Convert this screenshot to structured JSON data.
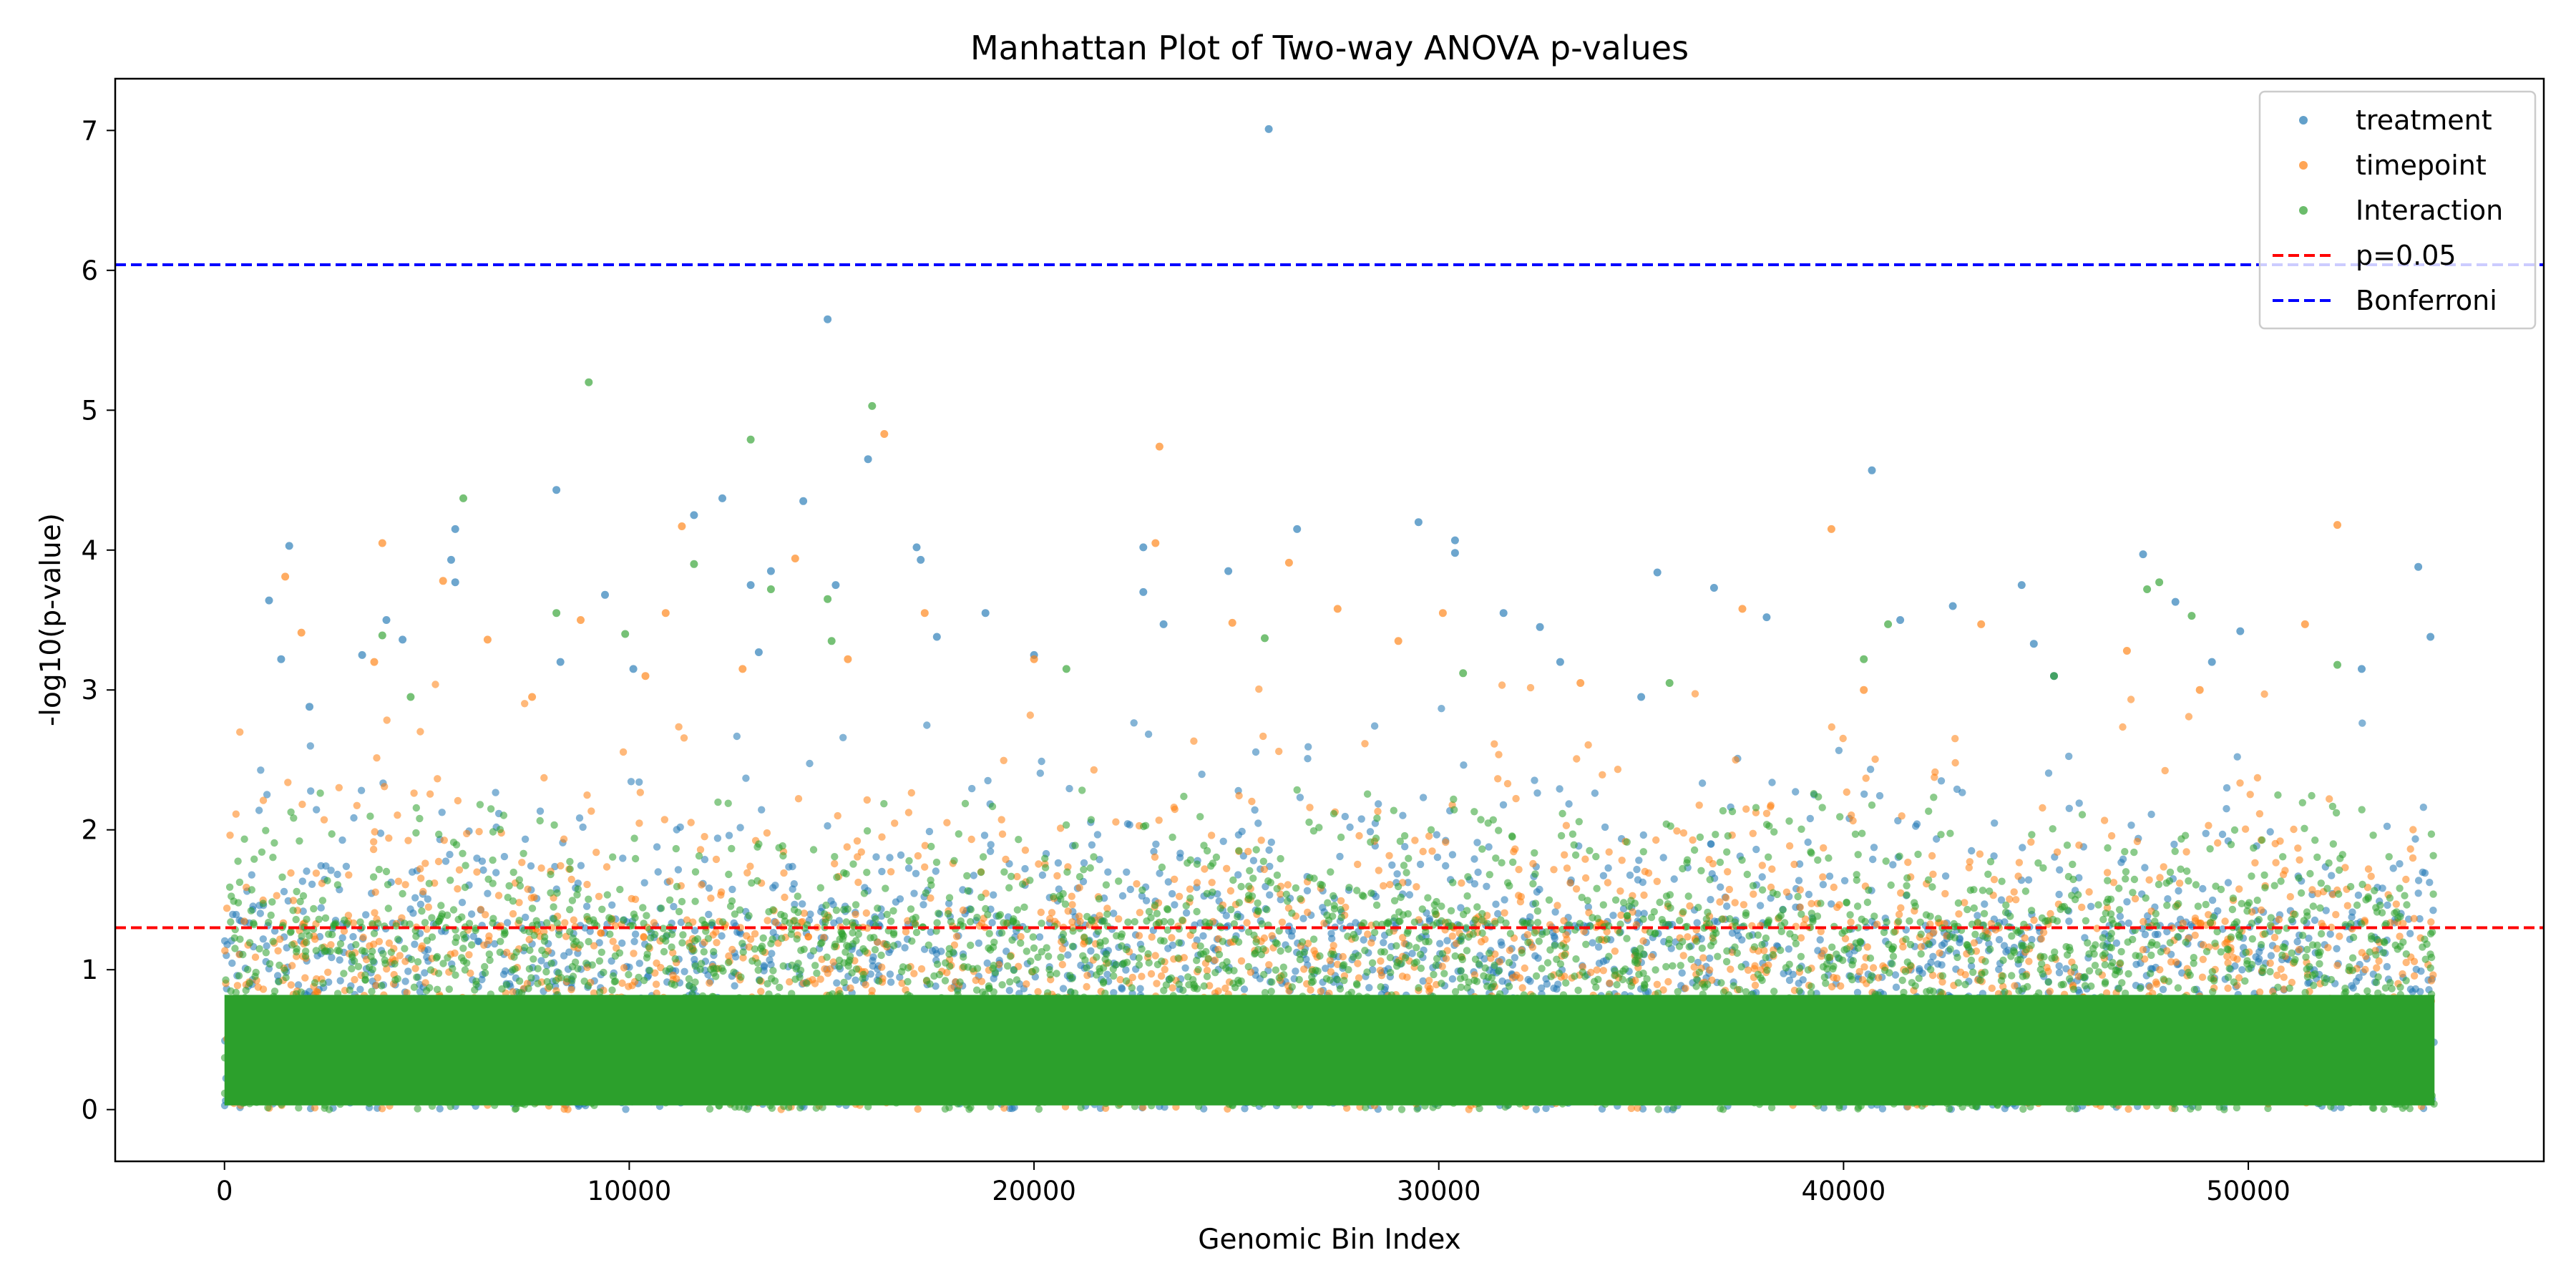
{
  "chart_data": {
    "type": "scatter",
    "title": "Manhattan Plot of Two-way ANOVA p-values",
    "xlabel": "Genomic Bin Index",
    "ylabel": "-log10(p-value)",
    "xlim": [
      -2700,
      57300
    ],
    "ylim": [
      -0.37,
      7.37
    ],
    "xticks": [
      0,
      10000,
      20000,
      30000,
      40000,
      50000
    ],
    "yticks": [
      0,
      1,
      2,
      3,
      4,
      5,
      6,
      7
    ],
    "n_bins": 54600,
    "legend_position": "upper right",
    "grid": false,
    "series": [
      {
        "name": "treatment",
        "color": "#1f77b4",
        "points": [
          [
            25800,
            7.01
          ],
          [
            14900,
            5.65
          ],
          [
            40700,
            4.57
          ],
          [
            15900,
            4.65
          ],
          [
            8200,
            4.43
          ],
          [
            12300,
            4.37
          ],
          [
            14300,
            4.35
          ],
          [
            11600,
            4.25
          ],
          [
            29500,
            4.2
          ],
          [
            5700,
            4.15
          ],
          [
            26500,
            4.15
          ],
          [
            30400,
            4.07
          ],
          [
            1600,
            4.03
          ],
          [
            17100,
            4.02
          ],
          [
            22700,
            4.02
          ],
          [
            30400,
            3.98
          ],
          [
            47400,
            3.97
          ],
          [
            17200,
            3.93
          ],
          [
            5600,
            3.93
          ],
          [
            54200,
            3.88
          ],
          [
            24800,
            3.85
          ],
          [
            35400,
            3.84
          ],
          [
            13500,
            3.85
          ],
          [
            13000,
            3.75
          ],
          [
            15100,
            3.75
          ],
          [
            44400,
            3.75
          ],
          [
            5700,
            3.77
          ],
          [
            36800,
            3.73
          ],
          [
            22700,
            3.7
          ],
          [
            1100,
            3.64
          ],
          [
            9400,
            3.68
          ],
          [
            48200,
            3.63
          ],
          [
            42700,
            3.6
          ],
          [
            31600,
            3.55
          ],
          [
            18800,
            3.55
          ],
          [
            4000,
            3.5
          ],
          [
            41400,
            3.5
          ],
          [
            38100,
            3.52
          ],
          [
            49800,
            3.42
          ],
          [
            54500,
            3.38
          ],
          [
            17600,
            3.38
          ],
          [
            23200,
            3.47
          ],
          [
            32500,
            3.45
          ],
          [
            4400,
            3.36
          ],
          [
            44700,
            3.33
          ],
          [
            1400,
            3.22
          ],
          [
            20000,
            3.25
          ],
          [
            49100,
            3.2
          ],
          [
            10100,
            3.15
          ],
          [
            52800,
            3.15
          ],
          [
            13200,
            3.27
          ],
          [
            3400,
            3.25
          ],
          [
            8300,
            3.2
          ],
          [
            33000,
            3.2
          ],
          [
            35000,
            2.95
          ],
          [
            2100,
            2.88
          ],
          [
            45200,
            3.1
          ]
        ]
      },
      {
        "name": "timepoint",
        "color": "#ff7f0e",
        "points": [
          [
            23100,
            4.74
          ],
          [
            16300,
            4.83
          ],
          [
            52200,
            4.18
          ],
          [
            11300,
            4.17
          ],
          [
            39700,
            4.15
          ],
          [
            3900,
            4.05
          ],
          [
            23000,
            4.05
          ],
          [
            14100,
            3.94
          ],
          [
            26300,
            3.91
          ],
          [
            1500,
            3.81
          ],
          [
            5400,
            3.78
          ],
          [
            37500,
            3.58
          ],
          [
            27500,
            3.58
          ],
          [
            10900,
            3.55
          ],
          [
            17300,
            3.55
          ],
          [
            30100,
            3.55
          ],
          [
            24900,
            3.48
          ],
          [
            8800,
            3.5
          ],
          [
            51400,
            3.47
          ],
          [
            43400,
            3.47
          ],
          [
            6500,
            3.36
          ],
          [
            1900,
            3.41
          ],
          [
            29000,
            3.35
          ],
          [
            47000,
            3.28
          ],
          [
            15400,
            3.22
          ],
          [
            3700,
            3.2
          ],
          [
            20000,
            3.22
          ],
          [
            10400,
            3.1
          ],
          [
            33500,
            3.05
          ],
          [
            12800,
            3.15
          ],
          [
            40500,
            3.0
          ],
          [
            48800,
            3.0
          ],
          [
            7600,
            2.95
          ]
        ]
      },
      {
        "name": "Interaction",
        "color": "#2ca02c",
        "points": [
          [
            9000,
            5.2
          ],
          [
            16000,
            5.03
          ],
          [
            13000,
            4.79
          ],
          [
            5900,
            4.37
          ],
          [
            11600,
            3.9
          ],
          [
            47800,
            3.77
          ],
          [
            47500,
            3.72
          ],
          [
            13500,
            3.72
          ],
          [
            14900,
            3.65
          ],
          [
            8200,
            3.55
          ],
          [
            48600,
            3.53
          ],
          [
            41100,
            3.47
          ],
          [
            9900,
            3.4
          ],
          [
            3900,
            3.39
          ],
          [
            25700,
            3.37
          ],
          [
            15000,
            3.35
          ],
          [
            40500,
            3.22
          ],
          [
            52200,
            3.18
          ],
          [
            30600,
            3.12
          ],
          [
            45200,
            3.1
          ],
          [
            20800,
            3.15
          ],
          [
            35700,
            3.05
          ],
          [
            4600,
            2.95
          ]
        ]
      }
    ],
    "reference_lines": [
      {
        "name": "p=0.05",
        "y": 1.3,
        "color": "#ff0000",
        "style": "dashed"
      },
      {
        "name": "Bonferroni",
        "y": 6.04,
        "color": "#0000ff",
        "style": "dashed"
      }
    ]
  }
}
